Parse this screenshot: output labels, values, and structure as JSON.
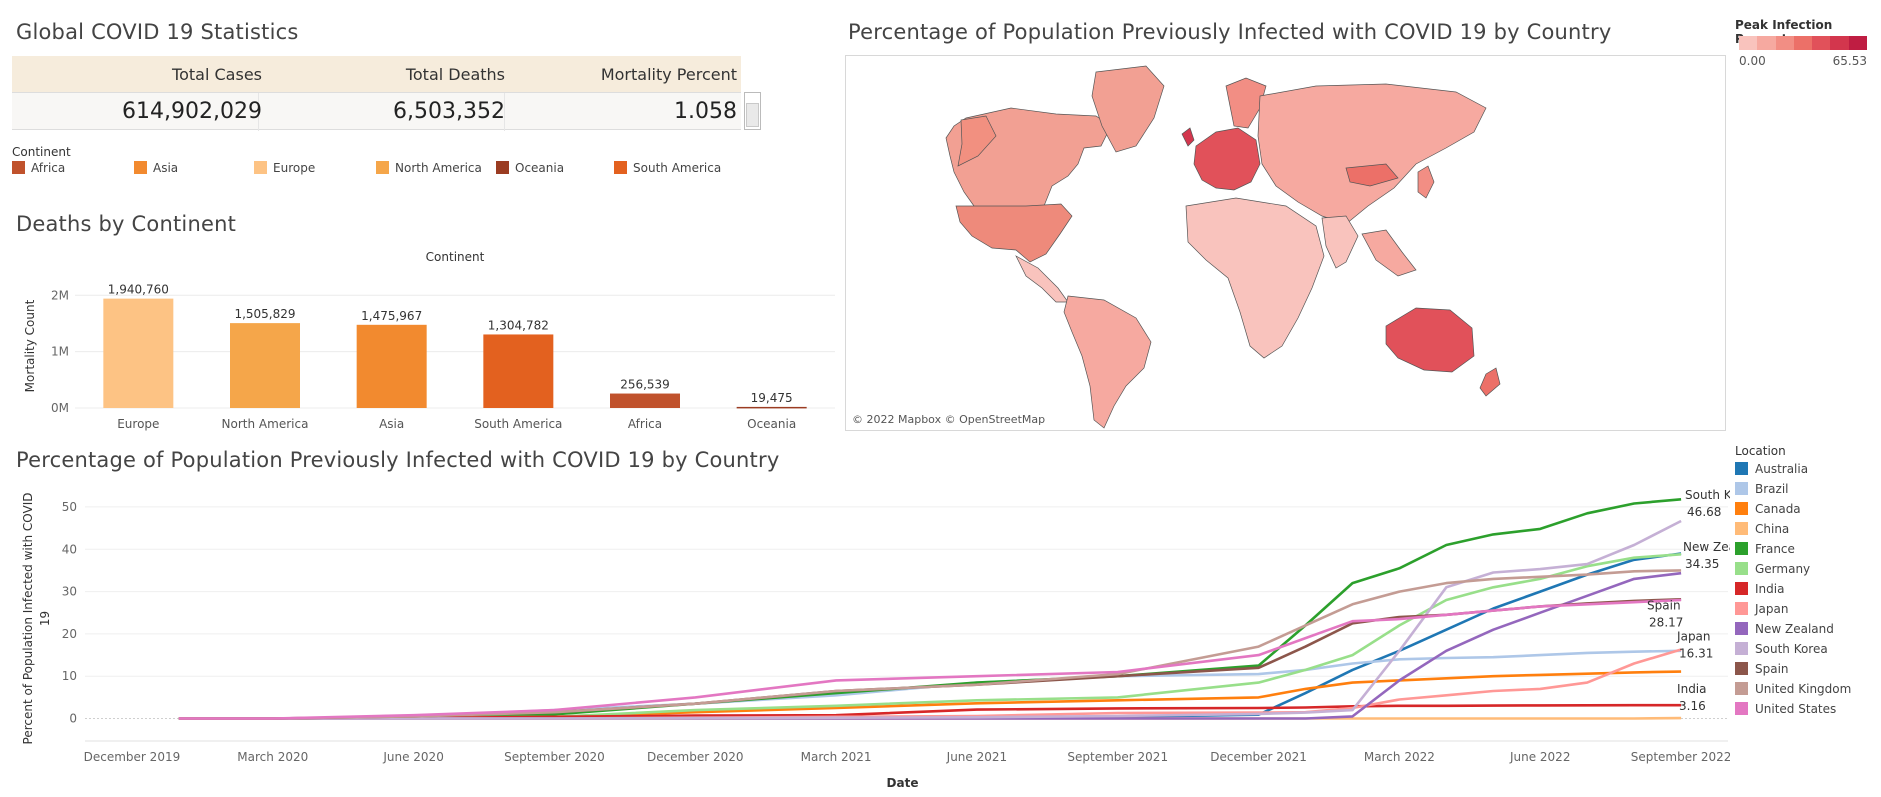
{
  "stats": {
    "title": "Global COVID 19 Statistics",
    "headers": [
      "Total Cases",
      "Total Deaths",
      "Mortality Percent"
    ],
    "values": [
      "614,902,029",
      "6,503,352",
      "1.058"
    ]
  },
  "continent_legend": {
    "title": "Continent",
    "items": [
      {
        "name": "Africa",
        "color": "#c0522c"
      },
      {
        "name": "Asia",
        "color": "#f28a2f"
      },
      {
        "name": "Europe",
        "color": "#fdc384"
      },
      {
        "name": "North America",
        "color": "#f5a64a"
      },
      {
        "name": "Oceania",
        "color": "#9b3c22"
      },
      {
        "name": "South America",
        "color": "#e3611f"
      }
    ]
  },
  "deaths_title": "Deaths by Continent",
  "map": {
    "title": "Percentage of Population Previously Infected with COVID 19 by Country",
    "attribution": "© 2022 Mapbox © OpenStreetMap"
  },
  "peak_legend": {
    "title": "Peak Infection Percent",
    "min_label": "0.00",
    "max_label": "65.53",
    "colors": [
      "#f9c3bd",
      "#f6a9a0",
      "#f28e84",
      "#ec7068",
      "#e1515a",
      "#d3364d",
      "#bf1d42"
    ]
  },
  "line_title": "Percentage of Population Previously Infected with COVID 19 by Country",
  "location_legend": {
    "title": "Location",
    "items": [
      {
        "name": "Australia",
        "color": "#1f77b4"
      },
      {
        "name": "Brazil",
        "color": "#aec7e8"
      },
      {
        "name": "Canada",
        "color": "#ff7f0e"
      },
      {
        "name": "China",
        "color": "#ffbb78"
      },
      {
        "name": "France",
        "color": "#2ca02c"
      },
      {
        "name": "Germany",
        "color": "#98df8a"
      },
      {
        "name": "India",
        "color": "#d62728"
      },
      {
        "name": "Japan",
        "color": "#ff9896"
      },
      {
        "name": "New Zealand",
        "color": "#9467bd"
      },
      {
        "name": "South Korea",
        "color": "#c5b0d5"
      },
      {
        "name": "Spain",
        "color": "#8c564b"
      },
      {
        "name": "United Kingdom",
        "color": "#c49c94"
      },
      {
        "name": "United States",
        "color": "#e377c2"
      }
    ]
  },
  "chart_data": [
    {
      "type": "bar",
      "title": "Deaths by Continent",
      "header": "Continent",
      "xlabel": "",
      "ylabel": "Mortality Count",
      "categories": [
        "Europe",
        "North America",
        "Asia",
        "South America",
        "Africa",
        "Oceania"
      ],
      "values": [
        1940760,
        1505829,
        1475967,
        1304782,
        256539,
        19475
      ],
      "value_labels": [
        "1,940,760",
        "1,505,829",
        "1,475,967",
        "1,304,782",
        "256,539",
        "19,475"
      ],
      "colors": [
        "#fdc384",
        "#f5a64a",
        "#f28a2f",
        "#e3611f",
        "#c0522c",
        "#9b3c22"
      ],
      "yticks": [
        0,
        1000000,
        2000000
      ],
      "ytick_labels": [
        "0M",
        "1M",
        "2M"
      ],
      "ylim": [
        0,
        2200000
      ],
      "grid": true
    },
    {
      "type": "line",
      "title": "Percentage of Population Previously Infected with COVID 19 by Country",
      "xlabel": "Date",
      "ylabel": "Percent of Population Infected with COVID 19",
      "x": [
        "2020-01",
        "2020-03",
        "2020-06",
        "2020-09",
        "2020-12",
        "2021-03",
        "2021-06",
        "2021-09",
        "2021-12",
        "2022-01",
        "2022-02",
        "2022-03",
        "2022-04",
        "2022-05",
        "2022-06",
        "2022-07",
        "2022-08",
        "2022-09"
      ],
      "xtick_labels": [
        "December 2019",
        "March 2020",
        "June 2020",
        "September 2020",
        "December 2020",
        "March 2021",
        "June 2021",
        "September 2021",
        "December 2021",
        "March 2022",
        "June 2022",
        "September 2022"
      ],
      "xticks": [
        "2019-12",
        "2020-03",
        "2020-06",
        "2020-09",
        "2020-12",
        "2021-03",
        "2021-06",
        "2021-09",
        "2021-12",
        "2022-03",
        "2022-06",
        "2022-09"
      ],
      "xlim": [
        "2019-11",
        "2022-10"
      ],
      "yticks": [
        0,
        10,
        20,
        30,
        40,
        50
      ],
      "ylim": [
        -2,
        54
      ],
      "grid": true,
      "series": [
        {
          "name": "Australia",
          "values": [
            0,
            0,
            0.1,
            0.1,
            0.1,
            0.1,
            0.1,
            0.4,
            0.9,
            6,
            11.5,
            16,
            21,
            26,
            30,
            34,
            37.5,
            39
          ]
        },
        {
          "name": "Brazil",
          "values": [
            0,
            0,
            0.5,
            2,
            3.5,
            5.5,
            8.5,
            10,
            10.5,
            11.5,
            13,
            14,
            14.3,
            14.5,
            15,
            15.5,
            15.8,
            16
          ]
        },
        {
          "name": "Canada",
          "values": [
            0,
            0,
            0.3,
            0.4,
            1.5,
            2.5,
            3.6,
            4.3,
            5,
            7,
            8.5,
            9,
            9.5,
            10,
            10.3,
            10.6,
            10.9,
            11.1
          ]
        },
        {
          "name": "China",
          "values": [
            0,
            0,
            0,
            0,
            0,
            0,
            0,
            0,
            0,
            0,
            0,
            0,
            0,
            0,
            0,
            0,
            0,
            0.1
          ]
        },
        {
          "name": "France",
          "values": [
            0,
            0,
            0.3,
            1,
            3.5,
            6,
            8.5,
            10,
            12.5,
            22,
            32,
            35.5,
            41,
            43.5,
            44.8,
            48.5,
            50.8,
            51.8
          ]
        },
        {
          "name": "Germany",
          "values": [
            0,
            0,
            0.2,
            0.4,
            2,
            3,
            4.3,
            5,
            8.5,
            11.5,
            15,
            22,
            28,
            31,
            33,
            36,
            38,
            38.8
          ]
        },
        {
          "name": "India",
          "values": [
            0,
            0,
            0.1,
            0.4,
            0.7,
            0.8,
            2.1,
            2.4,
            2.5,
            2.6,
            2.9,
            3,
            3,
            3.05,
            3.1,
            3.12,
            3.14,
            3.16
          ]
        },
        {
          "name": "Japan",
          "values": [
            0,
            0,
            0,
            0,
            0.2,
            0.4,
            0.6,
            1.3,
            1.4,
            1.5,
            2.5,
            4.5,
            5.5,
            6.5,
            7,
            8.5,
            13,
            16.31
          ]
        },
        {
          "name": "New Zealand",
          "values": [
            0,
            0,
            0,
            0,
            0,
            0,
            0,
            0,
            0,
            0,
            0.5,
            9,
            16,
            21,
            25,
            29,
            33,
            34.35
          ]
        },
        {
          "name": "South Korea",
          "values": [
            0,
            0,
            0,
            0,
            0.1,
            0.2,
            0.3,
            0.6,
            1.1,
            1.4,
            2,
            16,
            31,
            34.5,
            35.3,
            36.5,
            41,
            46.68
          ]
        },
        {
          "name": "Spain",
          "values": [
            0,
            0,
            0.5,
            1.5,
            3.5,
            6.5,
            8,
            10,
            12,
            17,
            22.5,
            24,
            24.5,
            25.5,
            26.5,
            27.2,
            27.8,
            28.17
          ]
        },
        {
          "name": "United Kingdom",
          "values": [
            0,
            0,
            0.5,
            1.5,
            3.5,
            6.5,
            8,
            10.5,
            17,
            22,
            27,
            30,
            32,
            33,
            33.5,
            34,
            34.8,
            35
          ]
        },
        {
          "name": "United States",
          "values": [
            0,
            0,
            0.8,
            2,
            5,
            9,
            10,
            11,
            15,
            19,
            23,
            23.5,
            24.5,
            25.5,
            26.5,
            27,
            27.5,
            28
          ]
        }
      ],
      "end_labels": [
        {
          "name": "South Korea",
          "value": "46.68"
        },
        {
          "name": "New Zealand",
          "value": "34.35"
        },
        {
          "name": "Spain",
          "value": "28.17"
        },
        {
          "name": "Japan",
          "value": "16.31"
        },
        {
          "name": "India",
          "value": "3.16"
        }
      ]
    }
  ]
}
